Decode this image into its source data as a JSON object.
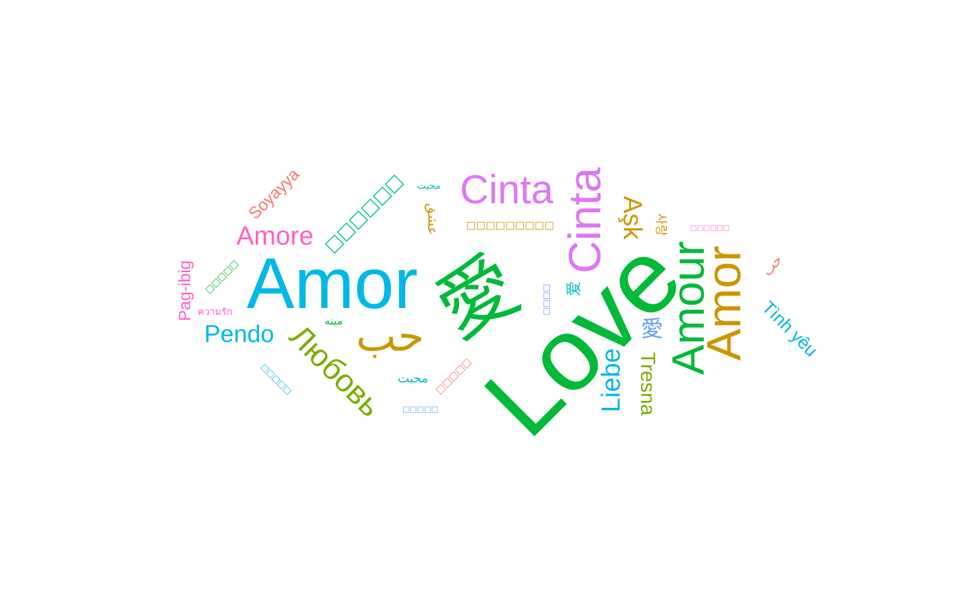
{
  "words": {
    "love": {
      "text": "Love",
      "color": "#00BA38"
    },
    "amor_blue": {
      "text": "Amor",
      "color": "#00B8E7"
    },
    "ai_big": {
      "text": "愛",
      "color": "#00BA38"
    },
    "amour": {
      "text": "Amour",
      "color": "#00BA38"
    },
    "amor_gold": {
      "text": "Amor",
      "color": "#CD9600"
    },
    "cinta_v": {
      "text": "Cinta",
      "color": "#E076F6"
    },
    "cinta_h": {
      "text": "Cinta",
      "color": "#E076F6"
    },
    "lyubov": {
      "text": "Любовь",
      "color": "#7CAE00"
    },
    "hubb_big": {
      "text": "حب",
      "color": "#CD9600"
    },
    "amore": {
      "text": "Amore",
      "color": "#FF61C3"
    },
    "pendo": {
      "text": "Pendo",
      "color": "#00B8E7"
    },
    "liebe": {
      "text": "Liebe",
      "color": "#00B8E7"
    },
    "tresna": {
      "text": "Tresna",
      "color": "#7CAE00"
    },
    "ask": {
      "text": "Aşk",
      "color": "#CD9600"
    },
    "tinh_yeu": {
      "text": "Tình yêu",
      "color": "#00B8E7"
    },
    "soyayya": {
      "text": "Soyayya",
      "color": "#F8766D"
    },
    "pag_ibig": {
      "text": "Pag-ibig",
      "color": "#FF61C3"
    },
    "ai_small_blue": {
      "text": "愛",
      "color": "#619CFF"
    },
    "ai_small_green": {
      "text": "爱",
      "color": "#00BFC4"
    },
    "sarang": {
      "text": "사랑",
      "color": "#CD9600"
    },
    "eshgh": {
      "text": "عشق",
      "color": "#CD9600"
    },
    "mohabbat_top": {
      "text": "محبت",
      "color": "#00BFC4"
    },
    "mohabbat_bottom": {
      "text": "محبت",
      "color": "#00BFC4"
    },
    "mina": {
      "text": "مينه",
      "color": "#00BA38"
    },
    "hubb_small": {
      "text": "حب",
      "color": "#F8766D"
    },
    "khwam_rak": {
      "text": "ความรัก",
      "color": "#FF61C3"
    },
    "box_teal": {
      "text": "□□□□□□",
      "color": "#00C19A"
    },
    "box_gold": {
      "text": "□□□□□□□□□",
      "color": "#CD9600"
    },
    "box_pink": {
      "text": "□□□□□□",
      "color": "#FF61C3"
    },
    "box_green": {
      "text": "□□□□□",
      "color": "#00BA38"
    },
    "box_blue_v": {
      "text": "□□□□",
      "color": "#619CFF"
    },
    "box_sky": {
      "text": "□□□□□",
      "color": "#00B8E7"
    },
    "box_salmon": {
      "text": "□□□□□",
      "color": "#F8766D"
    },
    "box_blue_h": {
      "text": "□□□□□",
      "color": "#619CFF"
    }
  }
}
